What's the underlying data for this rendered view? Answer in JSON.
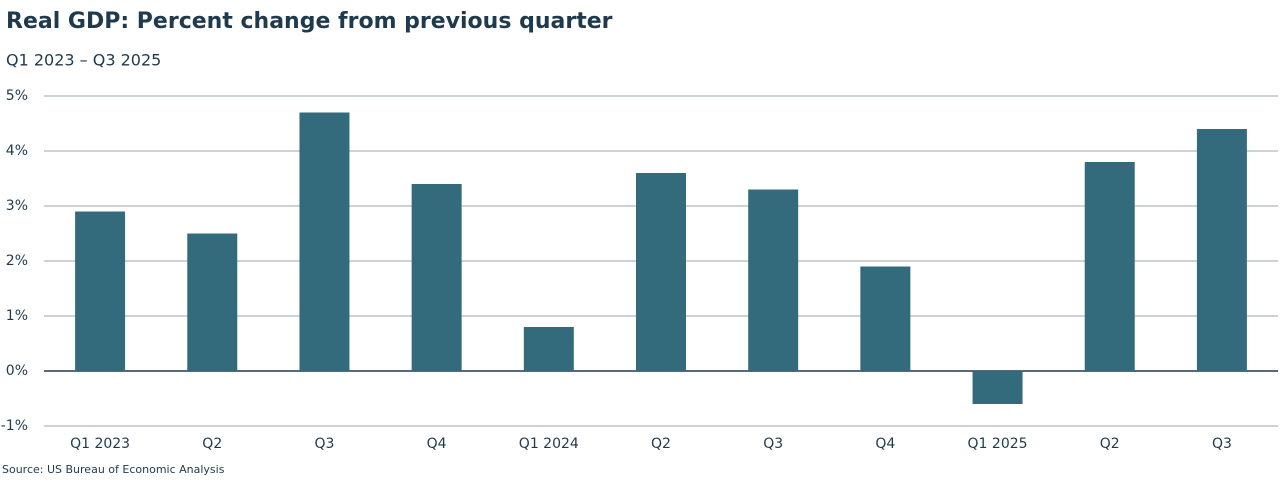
{
  "chart_data": {
    "type": "bar",
    "title": "Real GDP: Percent change from previous quarter",
    "subtitle": "Q1 2023 – Q3 2025",
    "source": "Source: US Bureau of Economic Analysis",
    "categories": [
      "Q1 2023",
      "Q2",
      "Q3",
      "Q4",
      "Q1 2024",
      "Q2",
      "Q3",
      "Q4",
      "Q1 2025",
      "Q2",
      "Q3"
    ],
    "values": [
      2.9,
      2.5,
      4.7,
      3.4,
      0.8,
      3.6,
      3.3,
      1.9,
      -0.6,
      3.8,
      4.4
    ],
    "color": "#336b7d",
    "ylim": [
      -1,
      5
    ],
    "yticks": [
      {
        "value": -1,
        "label": "-1%"
      },
      {
        "value": 0,
        "label": "0%"
      },
      {
        "value": 1,
        "label": "1%"
      },
      {
        "value": 2,
        "label": "2%"
      },
      {
        "value": 3,
        "label": "3%"
      },
      {
        "value": 4,
        "label": "4%"
      },
      {
        "value": 5,
        "label": "5%"
      }
    ],
    "grid": true
  }
}
